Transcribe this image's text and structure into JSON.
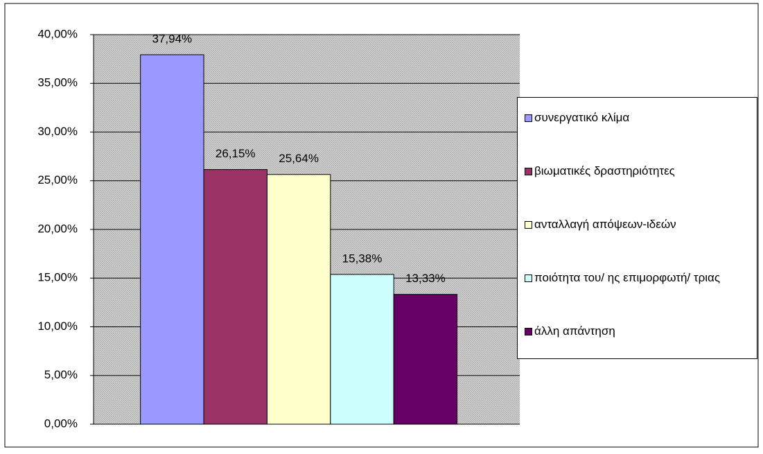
{
  "chart_data": {
    "type": "bar",
    "categories": [
      null
    ],
    "series": [
      {
        "name": "συνεργατικό κλίμα",
        "color": "#9999ff",
        "values": [
          37.94
        ],
        "value_labels": [
          "37,94%"
        ]
      },
      {
        "name": "βιωματικές δραστηριότητες",
        "color": "#993366",
        "values": [
          26.15
        ],
        "value_labels": [
          "26,15%"
        ]
      },
      {
        "name": "ανταλλαγή απόψεων-ιδεών",
        "color": "#ffffcc",
        "values": [
          25.64
        ],
        "value_labels": [
          "25,64%"
        ]
      },
      {
        "name": "ποιότητα του/ ης επιμορφωτή/ τριας",
        "color": "#ccffff",
        "values": [
          15.38
        ],
        "value_labels": [
          "15,38%"
        ]
      },
      {
        "name": "άλλη απάντηση",
        "color": "#660066",
        "values": [
          13.33
        ],
        "value_labels": [
          "13,33%"
        ]
      }
    ],
    "ylim": [
      0,
      40
    ],
    "yticks": [
      {
        "value": 0,
        "label": "0,00%"
      },
      {
        "value": 5,
        "label": "5,00%"
      },
      {
        "value": 10,
        "label": "10,00%"
      },
      {
        "value": 15,
        "label": "15,00%"
      },
      {
        "value": 20,
        "label": "20,00%"
      },
      {
        "value": 25,
        "label": "25,00%"
      },
      {
        "value": 30,
        "label": "30,00%"
      },
      {
        "value": 35,
        "label": "35,00%"
      },
      {
        "value": 40,
        "label": "40,00%"
      }
    ],
    "grid": true,
    "legend": "right"
  }
}
